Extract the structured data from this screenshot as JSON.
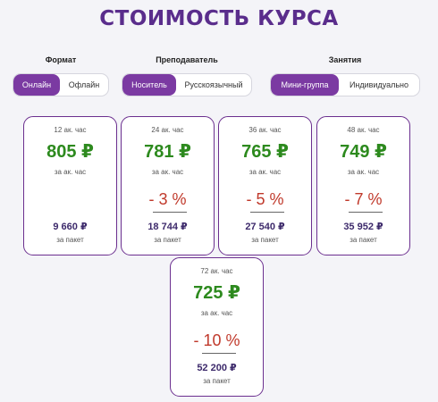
{
  "title": "СТОИМОСТЬ КУРСА",
  "groups": [
    {
      "label": "Формат",
      "options": [
        "Онлайн",
        "Офлайн"
      ],
      "selected": "Онлайн"
    },
    {
      "label": "Преподаватель",
      "options": [
        "Носитель",
        "Русскоязычный"
      ],
      "selected": "Носитель"
    },
    {
      "label": "Занятия",
      "options": [
        "Мини-группа",
        "Индивидуально"
      ],
      "selected": "Мини-группа"
    }
  ],
  "colors": {
    "accent": "#7b3aa2",
    "title": "#5a2d8c",
    "price": "#2d8a1e",
    "discount": "#c0392b",
    "card_border": "#6b2f8f"
  },
  "cards": [
    {
      "hours": "12 ак. час",
      "price": "805 ₽",
      "per": "за ак. час",
      "discount": "",
      "total": "9 660 ₽",
      "pkg": "за пакет"
    },
    {
      "hours": "24 ак. час",
      "price": "781 ₽",
      "per": "за ак. час",
      "discount": "- 3 %",
      "total": "18 744 ₽",
      "pkg": "за пакет"
    },
    {
      "hours": "36 ак. час",
      "price": "765 ₽",
      "per": "за ак. час",
      "discount": "- 5 %",
      "total": "27 540 ₽",
      "pkg": "за пакет"
    },
    {
      "hours": "48 ак. час",
      "price": "749 ₽",
      "per": "за ак. час",
      "discount": "- 7 %",
      "total": "35 952 ₽",
      "pkg": "за пакет"
    },
    {
      "hours": "72 ак. час",
      "price": "725 ₽",
      "per": "за ак. час",
      "discount": "- 10 %",
      "total": "52 200 ₽",
      "pkg": "за пакет"
    }
  ]
}
